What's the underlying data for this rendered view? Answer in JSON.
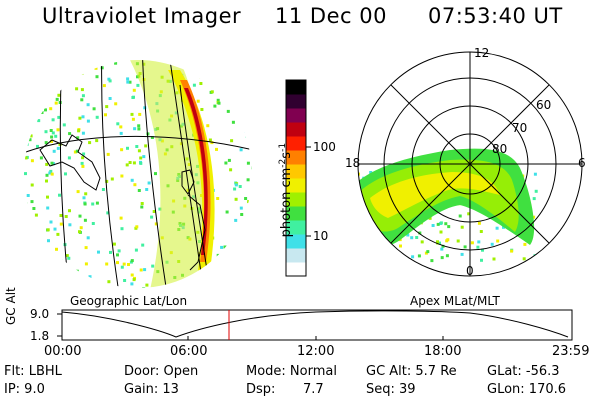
{
  "header": {
    "instrument": "Ultraviolet Imager",
    "date": "11 Dec 00",
    "time": "07:53:40 UT"
  },
  "left_panel": {
    "caption": "Geographic Lat/Lon"
  },
  "right_panel": {
    "caption": "Apex MLat/MLT",
    "mlt_labels": [
      "12",
      "18",
      "6",
      "0"
    ],
    "mlat_labels": [
      "60",
      "70",
      "80"
    ]
  },
  "colorbar": {
    "unit_label": "photon cm",
    "unit_exp1": "-2",
    "unit_mid": "s",
    "unit_exp2": "-1",
    "tick_100": "100",
    "tick_10": "10",
    "colors": [
      "#ffffff",
      "#c8e8f0",
      "#40e0e8",
      "#40f0a0",
      "#40e040",
      "#a0f000",
      "#f0f000",
      "#ffc800",
      "#ff8000",
      "#ff2000",
      "#c00010",
      "#800050",
      "#300030",
      "#000000"
    ]
  },
  "timeline": {
    "y_axis_label": "GC Alt",
    "y_ticks": [
      "9.0",
      "1.8"
    ],
    "x_ticks": [
      "00:00",
      "06:00",
      "12:00",
      "18:00",
      "23:59"
    ],
    "marker_color": "#e00000"
  },
  "info": {
    "flt": "Flt: LBHL",
    "ip": "IP: 9.0",
    "door": "Door: Open",
    "gain": "Gain: 13",
    "mode": "Mode: Normal",
    "dsp_label": "Dsp:",
    "dsp_value": "7.7",
    "gc_alt": "GC Alt: 5.7 Re",
    "seq": "Seq: 39",
    "glat": "GLat: -56.3",
    "glon": "GLon: 170.6"
  }
}
